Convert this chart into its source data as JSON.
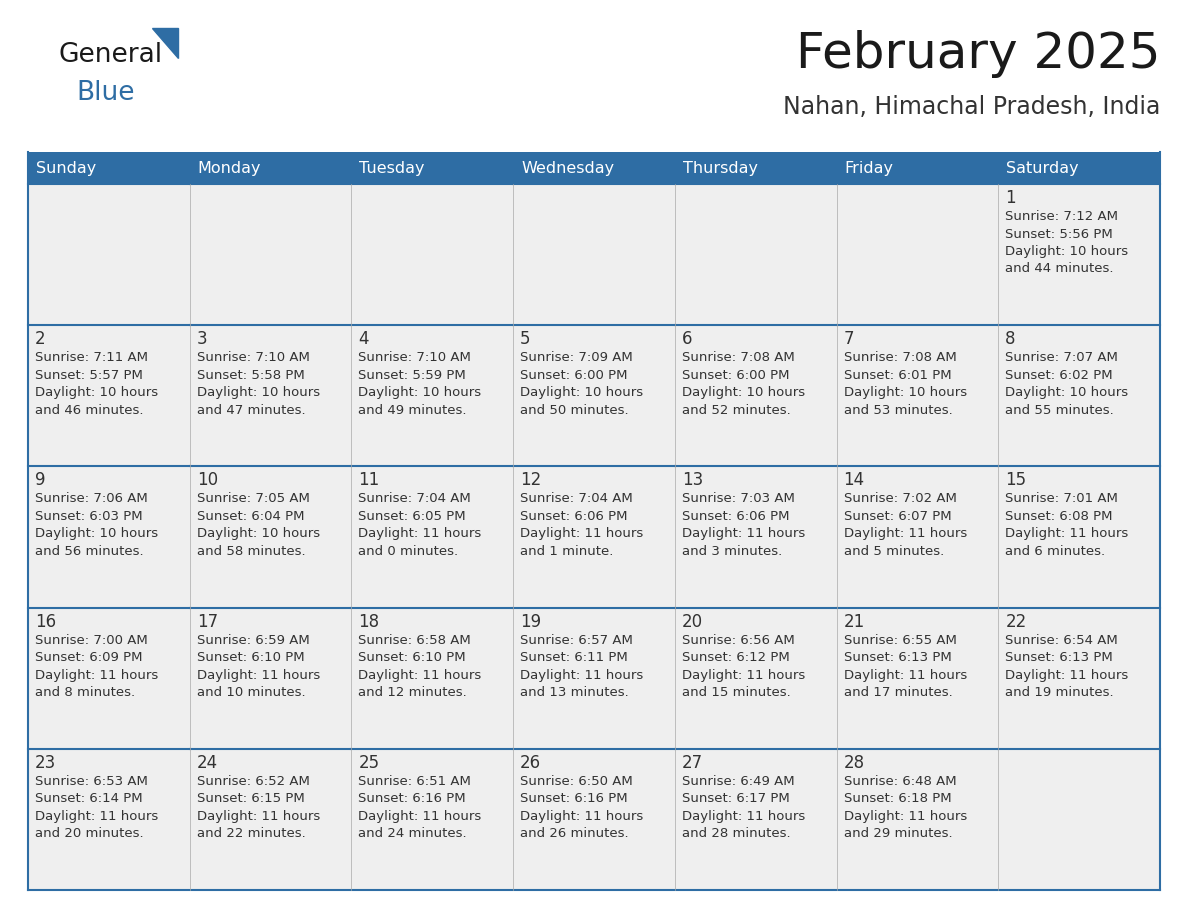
{
  "title": "February 2025",
  "subtitle": "Nahan, Himachal Pradesh, India",
  "header_bg": "#2E6DA4",
  "header_text": "#FFFFFF",
  "cell_bg": "#EFEFEF",
  "border_color": "#2E6DA4",
  "day_headers": [
    "Sunday",
    "Monday",
    "Tuesday",
    "Wednesday",
    "Thursday",
    "Friday",
    "Saturday"
  ],
  "title_color": "#1a1a1a",
  "subtitle_color": "#333333",
  "day_num_color": "#333333",
  "text_color": "#333333",
  "logo_general_color": "#1a1a1a",
  "logo_blue_color": "#2E6DA4",
  "calendar_data": [
    [
      null,
      null,
      null,
      null,
      null,
      null,
      {
        "day": "1",
        "sunrise": "7:12 AM",
        "sunset": "5:56 PM",
        "daylight_h": "10 hours",
        "daylight_m": "and 44 minutes."
      }
    ],
    [
      {
        "day": "2",
        "sunrise": "7:11 AM",
        "sunset": "5:57 PM",
        "daylight_h": "10 hours",
        "daylight_m": "and 46 minutes."
      },
      {
        "day": "3",
        "sunrise": "7:10 AM",
        "sunset": "5:58 PM",
        "daylight_h": "10 hours",
        "daylight_m": "and 47 minutes."
      },
      {
        "day": "4",
        "sunrise": "7:10 AM",
        "sunset": "5:59 PM",
        "daylight_h": "10 hours",
        "daylight_m": "and 49 minutes."
      },
      {
        "day": "5",
        "sunrise": "7:09 AM",
        "sunset": "6:00 PM",
        "daylight_h": "10 hours",
        "daylight_m": "and 50 minutes."
      },
      {
        "day": "6",
        "sunrise": "7:08 AM",
        "sunset": "6:00 PM",
        "daylight_h": "10 hours",
        "daylight_m": "and 52 minutes."
      },
      {
        "day": "7",
        "sunrise": "7:08 AM",
        "sunset": "6:01 PM",
        "daylight_h": "10 hours",
        "daylight_m": "and 53 minutes."
      },
      {
        "day": "8",
        "sunrise": "7:07 AM",
        "sunset": "6:02 PM",
        "daylight_h": "10 hours",
        "daylight_m": "and 55 minutes."
      }
    ],
    [
      {
        "day": "9",
        "sunrise": "7:06 AM",
        "sunset": "6:03 PM",
        "daylight_h": "10 hours",
        "daylight_m": "and 56 minutes."
      },
      {
        "day": "10",
        "sunrise": "7:05 AM",
        "sunset": "6:04 PM",
        "daylight_h": "10 hours",
        "daylight_m": "and 58 minutes."
      },
      {
        "day": "11",
        "sunrise": "7:04 AM",
        "sunset": "6:05 PM",
        "daylight_h": "11 hours",
        "daylight_m": "and 0 minutes."
      },
      {
        "day": "12",
        "sunrise": "7:04 AM",
        "sunset": "6:06 PM",
        "daylight_h": "11 hours",
        "daylight_m": "and 1 minute."
      },
      {
        "day": "13",
        "sunrise": "7:03 AM",
        "sunset": "6:06 PM",
        "daylight_h": "11 hours",
        "daylight_m": "and 3 minutes."
      },
      {
        "day": "14",
        "sunrise": "7:02 AM",
        "sunset": "6:07 PM",
        "daylight_h": "11 hours",
        "daylight_m": "and 5 minutes."
      },
      {
        "day": "15",
        "sunrise": "7:01 AM",
        "sunset": "6:08 PM",
        "daylight_h": "11 hours",
        "daylight_m": "and 6 minutes."
      }
    ],
    [
      {
        "day": "16",
        "sunrise": "7:00 AM",
        "sunset": "6:09 PM",
        "daylight_h": "11 hours",
        "daylight_m": "and 8 minutes."
      },
      {
        "day": "17",
        "sunrise": "6:59 AM",
        "sunset": "6:10 PM",
        "daylight_h": "11 hours",
        "daylight_m": "and 10 minutes."
      },
      {
        "day": "18",
        "sunrise": "6:58 AM",
        "sunset": "6:10 PM",
        "daylight_h": "11 hours",
        "daylight_m": "and 12 minutes."
      },
      {
        "day": "19",
        "sunrise": "6:57 AM",
        "sunset": "6:11 PM",
        "daylight_h": "11 hours",
        "daylight_m": "and 13 minutes."
      },
      {
        "day": "20",
        "sunrise": "6:56 AM",
        "sunset": "6:12 PM",
        "daylight_h": "11 hours",
        "daylight_m": "and 15 minutes."
      },
      {
        "day": "21",
        "sunrise": "6:55 AM",
        "sunset": "6:13 PM",
        "daylight_h": "11 hours",
        "daylight_m": "and 17 minutes."
      },
      {
        "day": "22",
        "sunrise": "6:54 AM",
        "sunset": "6:13 PM",
        "daylight_h": "11 hours",
        "daylight_m": "and 19 minutes."
      }
    ],
    [
      {
        "day": "23",
        "sunrise": "6:53 AM",
        "sunset": "6:14 PM",
        "daylight_h": "11 hours",
        "daylight_m": "and 20 minutes."
      },
      {
        "day": "24",
        "sunrise": "6:52 AM",
        "sunset": "6:15 PM",
        "daylight_h": "11 hours",
        "daylight_m": "and 22 minutes."
      },
      {
        "day": "25",
        "sunrise": "6:51 AM",
        "sunset": "6:16 PM",
        "daylight_h": "11 hours",
        "daylight_m": "and 24 minutes."
      },
      {
        "day": "26",
        "sunrise": "6:50 AM",
        "sunset": "6:16 PM",
        "daylight_h": "11 hours",
        "daylight_m": "and 26 minutes."
      },
      {
        "day": "27",
        "sunrise": "6:49 AM",
        "sunset": "6:17 PM",
        "daylight_h": "11 hours",
        "daylight_m": "and 28 minutes."
      },
      {
        "day": "28",
        "sunrise": "6:48 AM",
        "sunset": "6:18 PM",
        "daylight_h": "11 hours",
        "daylight_m": "and 29 minutes."
      },
      null
    ]
  ]
}
